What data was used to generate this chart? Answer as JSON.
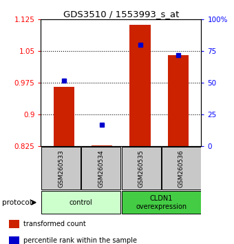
{
  "title": "GDS3510 / 1553993_s_at",
  "samples": [
    "GSM260533",
    "GSM260534",
    "GSM260535",
    "GSM260536"
  ],
  "bar_values": [
    0.965,
    0.828,
    1.112,
    1.04
  ],
  "bar_base": 0.825,
  "percentile_values": [
    52,
    17,
    80,
    72
  ],
  "bar_color": "#cc2200",
  "percentile_color": "#0000cc",
  "ylim_left": [
    0.825,
    1.125
  ],
  "ylim_right": [
    0,
    100
  ],
  "yticks_left": [
    0.825,
    0.9,
    0.975,
    1.05,
    1.125
  ],
  "ytick_labels_left": [
    "0.825",
    "0.9",
    "0.975",
    "1.05",
    "1.125"
  ],
  "yticks_right": [
    0,
    25,
    50,
    75,
    100
  ],
  "ytick_labels_right": [
    "0",
    "25",
    "50",
    "75",
    "100%"
  ],
  "groups": [
    {
      "label": "control",
      "samples": [
        0,
        1
      ],
      "color": "#ccffcc"
    },
    {
      "label": "CLDN1\noverexpression",
      "samples": [
        2,
        3
      ],
      "color": "#44cc44"
    }
  ],
  "protocol_label": "protocol",
  "legend_items": [
    {
      "label": "transformed count",
      "color": "#cc2200"
    },
    {
      "label": "percentile rank within the sample",
      "color": "#0000cc"
    }
  ],
  "background_color": "#ffffff",
  "plot_bg_color": "#ffffff",
  "bar_width": 0.55,
  "sample_bg_color": "#c8c8c8"
}
